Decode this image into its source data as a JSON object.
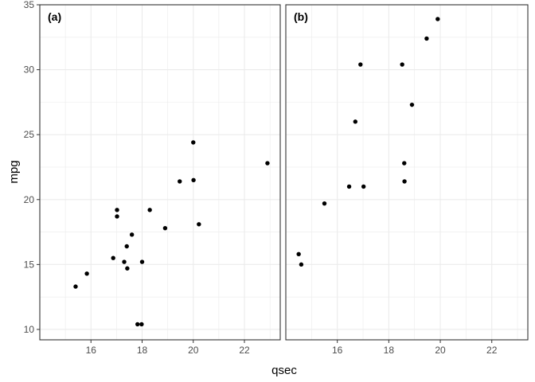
{
  "chart_data": [
    {
      "type": "scatter",
      "panel_tag": "(a)",
      "xlabel": "qsec",
      "ylabel": "mpg",
      "xlim": [
        14.0,
        23.4
      ],
      "ylim": [
        9.2,
        35.0
      ],
      "xticks": [
        16,
        18,
        20,
        22
      ],
      "yticks": [
        10,
        15,
        20,
        25,
        30,
        35
      ],
      "grid": true,
      "points": [
        {
          "x": 15.4,
          "y": 13.3
        },
        {
          "x": 15.84,
          "y": 14.3
        },
        {
          "x": 16.87,
          "y": 15.5
        },
        {
          "x": 17.02,
          "y": 18.7
        },
        {
          "x": 17.02,
          "y": 19.2
        },
        {
          "x": 17.3,
          "y": 15.2
        },
        {
          "x": 17.4,
          "y": 16.4
        },
        {
          "x": 17.42,
          "y": 14.7
        },
        {
          "x": 17.6,
          "y": 17.3
        },
        {
          "x": 17.82,
          "y": 10.4
        },
        {
          "x": 17.98,
          "y": 10.4
        },
        {
          "x": 18.0,
          "y": 15.2
        },
        {
          "x": 18.3,
          "y": 19.2
        },
        {
          "x": 18.9,
          "y": 17.8
        },
        {
          "x": 19.47,
          "y": 21.4
        },
        {
          "x": 20.0,
          "y": 24.4
        },
        {
          "x": 20.01,
          "y": 21.5
        },
        {
          "x": 20.22,
          "y": 18.1
        },
        {
          "x": 22.9,
          "y": 22.8
        }
      ]
    },
    {
      "type": "scatter",
      "panel_tag": "(b)",
      "xlabel": "qsec",
      "ylabel": "mpg",
      "xlim": [
        14.0,
        23.4
      ],
      "ylim": [
        9.2,
        35.0
      ],
      "xticks": [
        16,
        18,
        20,
        22
      ],
      "yticks": [
        10,
        15,
        20,
        25,
        30,
        35
      ],
      "grid": true,
      "points": [
        {
          "x": 14.5,
          "y": 15.8
        },
        {
          "x": 14.6,
          "y": 15.0
        },
        {
          "x": 15.5,
          "y": 19.7
        },
        {
          "x": 16.46,
          "y": 21.0
        },
        {
          "x": 16.7,
          "y": 26.0
        },
        {
          "x": 16.9,
          "y": 30.4
        },
        {
          "x": 17.02,
          "y": 21.0
        },
        {
          "x": 18.52,
          "y": 30.4
        },
        {
          "x": 18.6,
          "y": 22.8
        },
        {
          "x": 18.61,
          "y": 21.4
        },
        {
          "x": 18.9,
          "y": 27.3
        },
        {
          "x": 19.47,
          "y": 32.4
        },
        {
          "x": 19.9,
          "y": 33.9
        }
      ]
    }
  ],
  "colors": {
    "point": "#000000",
    "panel_border": "#333333",
    "grid": "#ebebeb",
    "tick_text": "#4d4d4d"
  }
}
